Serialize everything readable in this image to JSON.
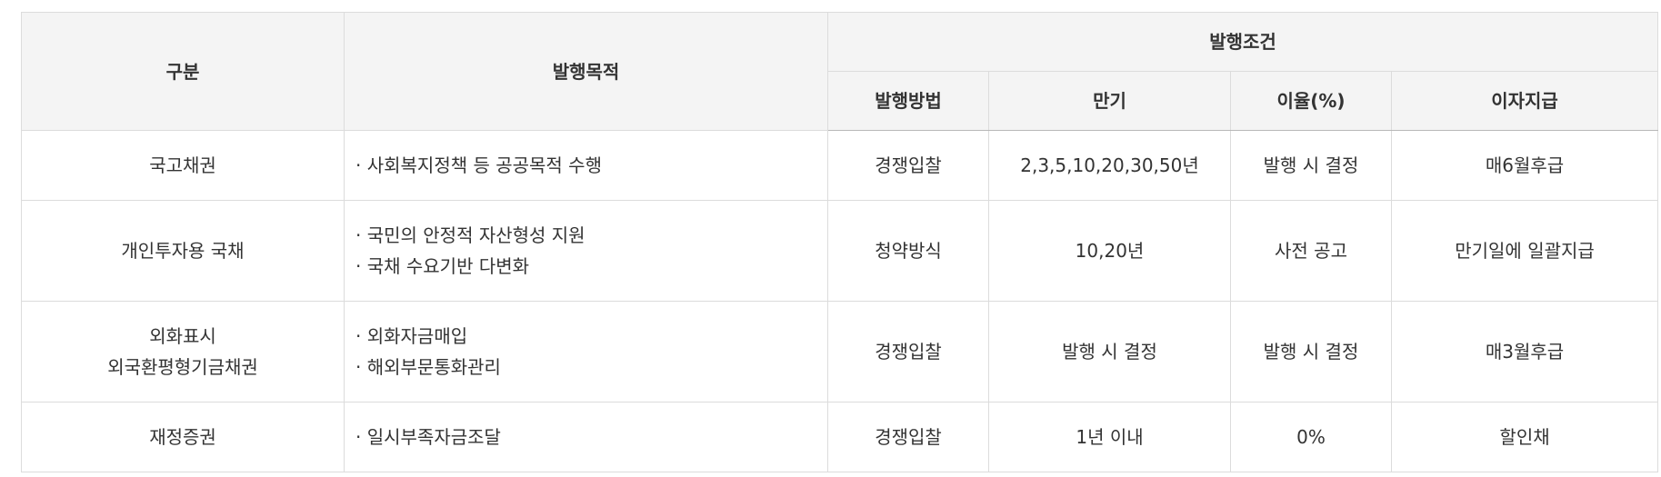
{
  "table": {
    "headers": {
      "category": "구분",
      "purpose": "발행목적",
      "conditions": "발행조건",
      "method": "발행방법",
      "maturity": "만기",
      "rate": "이율(%)",
      "interest": "이자지급"
    },
    "rows": [
      {
        "category": [
          "국고채권"
        ],
        "purpose": [
          "· 사회복지정책 등 공공목적 수행"
        ],
        "method": "경쟁입찰",
        "maturity": "2,3,5,10,20,30,50년",
        "rate": "발행 시 결정",
        "interest": "매6월후급"
      },
      {
        "category": [
          "개인투자용 국채"
        ],
        "purpose": [
          "· 국민의 안정적 자산형성 지원",
          "· 국채 수요기반 다변화"
        ],
        "method": "청약방식",
        "maturity": "10,20년",
        "rate": "사전 공고",
        "interest": "만기일에 일괄지급"
      },
      {
        "category": [
          "외화표시",
          "외국환평형기금채권"
        ],
        "purpose": [
          "· 외화자금매입",
          "· 해외부문통화관리"
        ],
        "method": "경쟁입찰",
        "maturity": "발행 시 결정",
        "rate": "발행 시 결정",
        "interest": "매3월후급"
      },
      {
        "category": [
          "재정증권"
        ],
        "purpose": [
          "· 일시부족자금조달"
        ],
        "method": "경쟁입찰",
        "maturity": "1년 이내",
        "rate": "0%",
        "interest": "할인채"
      }
    ]
  }
}
